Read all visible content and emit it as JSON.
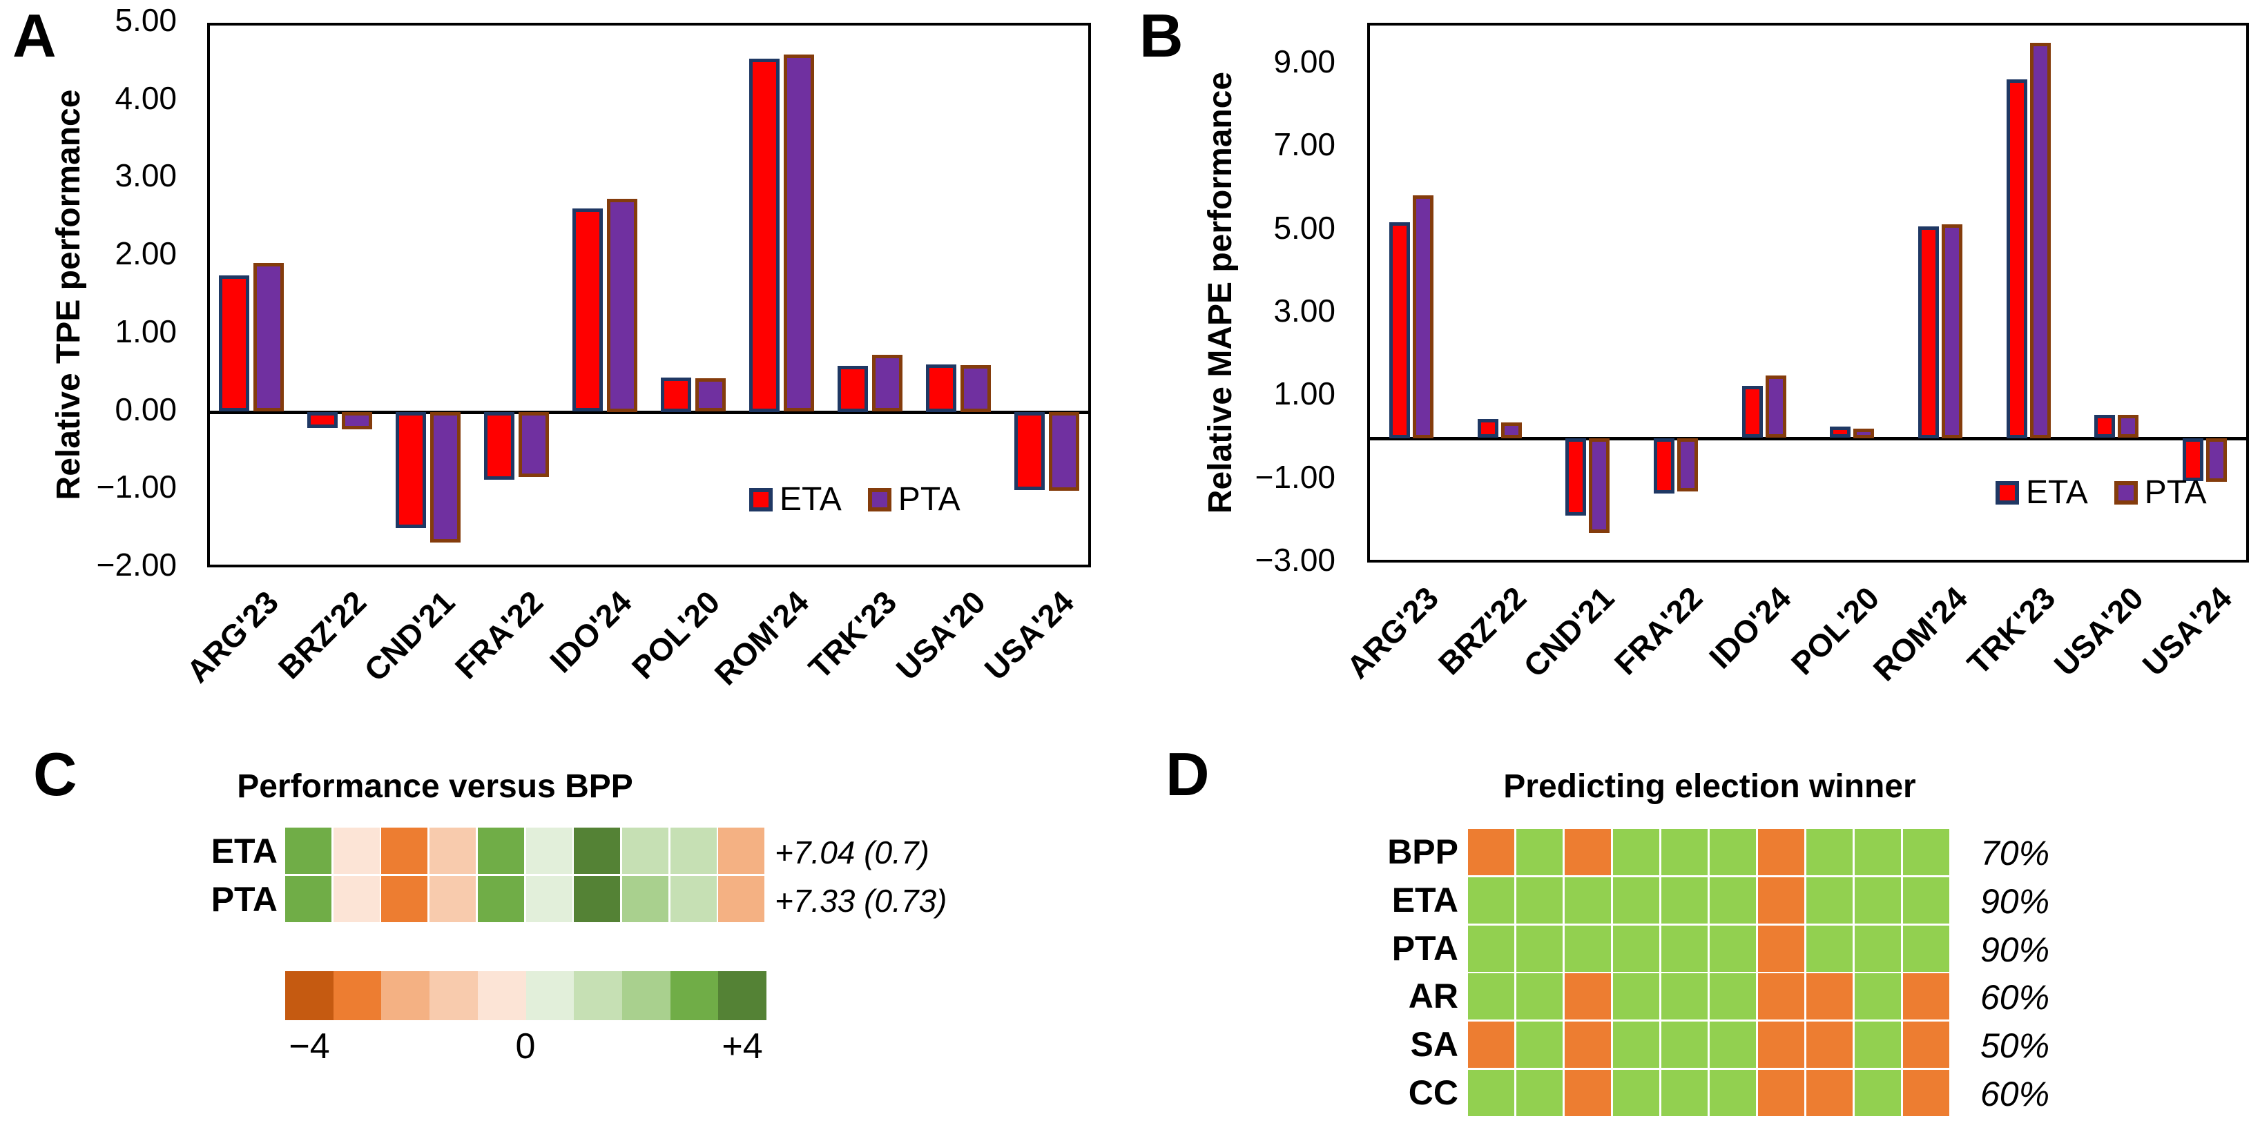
{
  "figure": {
    "background": "#FFFFFF",
    "panel_letters": [
      "A",
      "B",
      "C",
      "D"
    ]
  },
  "chart_data": [
    {
      "id": "A",
      "panel_letter": "A",
      "type": "bar",
      "ylabel": "Relative TPE performance",
      "categories": [
        "ARG'23",
        "BRZ'22",
        "CND'21",
        "FRA'22",
        "IDO'24",
        "POL'20",
        "ROM'24",
        "TRK'23",
        "USA'20",
        "USA'24"
      ],
      "series": [
        {
          "name": "ETA",
          "fill": "#FF0000",
          "border": "#1F3864",
          "values": [
            1.75,
            -0.2,
            -1.49,
            -0.87,
            2.61,
            0.44,
            4.54,
            0.59,
            0.61,
            -1.0
          ]
        },
        {
          "name": "PTA",
          "fill": "#7030A0",
          "border": "#843C0C",
          "values": [
            1.91,
            -0.22,
            -1.68,
            -0.83,
            2.74,
            0.43,
            4.59,
            0.73,
            0.6,
            -1.01
          ]
        }
      ],
      "ylim": [
        -2,
        5
      ],
      "yticks": [
        {
          "v": 5,
          "label": "5.00"
        },
        {
          "v": 4,
          "label": "4.00"
        },
        {
          "v": 3,
          "label": "3.00"
        },
        {
          "v": 2,
          "label": "2.00"
        },
        {
          "v": 1,
          "label": "1.00"
        },
        {
          "v": 0,
          "label": "0.00"
        },
        {
          "v": -1,
          "label": "−1.00"
        },
        {
          "v": -2,
          "label": "−2.00"
        }
      ],
      "grid": false,
      "legend_position": "inside-bottom-right"
    },
    {
      "id": "B",
      "panel_letter": "B",
      "type": "bar",
      "ylabel": "Relative MAPE performance",
      "categories": [
        "ARG'23",
        "BRZ'22",
        "CND'21",
        "FRA'22",
        "IDO'24",
        "POL'20",
        "ROM'24",
        "TRK'23",
        "USA'20",
        "USA'24"
      ],
      "series": [
        {
          "name": "ETA",
          "fill": "#FF0000",
          "border": "#1F3864",
          "values": [
            5.2,
            0.45,
            -1.87,
            -1.33,
            1.25,
            0.27,
            5.1,
            8.64,
            0.55,
            -1.03
          ]
        },
        {
          "name": "PTA",
          "fill": "#7030A0",
          "border": "#843C0C",
          "values": [
            5.85,
            0.38,
            -2.28,
            -1.28,
            1.5,
            0.23,
            5.15,
            9.52,
            0.55,
            -1.05
          ]
        }
      ],
      "ylim": [
        -3,
        10
      ],
      "yticks": [
        {
          "v": 9,
          "label": "9.00"
        },
        {
          "v": 7,
          "label": "7.00"
        },
        {
          "v": 5,
          "label": "5.00"
        },
        {
          "v": 3,
          "label": "3.00"
        },
        {
          "v": 1,
          "label": "1.00"
        },
        {
          "v": -1,
          "label": "−1.00"
        },
        {
          "v": -3,
          "label": "−3.00"
        }
      ],
      "grid": false,
      "legend_position": "inside-bottom-right"
    },
    {
      "id": "C",
      "panel_letter": "C",
      "type": "heatmap",
      "title": "Performance versus BPP",
      "rows": [
        {
          "label": "ETA",
          "annotation": "+7.04 (0.7)",
          "cell_colors": [
            "#70AD47",
            "#FCE4D6",
            "#ED7D31",
            "#F8CBAD",
            "#70AD47",
            "#E2EFDA",
            "#548235",
            "#C6E0B4",
            "#C6E0B4",
            "#F4B183"
          ]
        },
        {
          "label": "PTA",
          "annotation": "+7.33 (0.73)",
          "cell_colors": [
            "#70AD47",
            "#FCE4D6",
            "#ED7D31",
            "#F8CBAD",
            "#70AD47",
            "#E2EFDA",
            "#548235",
            "#A9D08E",
            "#C6E0B4",
            "#F4B183"
          ]
        }
      ],
      "colorbar": {
        "colors": [
          "#C55A11",
          "#ED7D31",
          "#F4B183",
          "#F8CBAD",
          "#FCE4D6",
          "#E2EFDA",
          "#C6E0B4",
          "#A9D08E",
          "#70AD47",
          "#548235"
        ],
        "tick_labels": [
          "−4",
          "0",
          "+4"
        ],
        "range": [
          -4,
          4
        ]
      }
    },
    {
      "id": "D",
      "panel_letter": "D",
      "type": "heatmap",
      "title": "Predicting election winner",
      "correct_color": "#92D050",
      "incorrect_color": "#ED7D31",
      "rows": [
        {
          "label": "BPP",
          "annotation": "70%",
          "cells": [
            0,
            1,
            0,
            1,
            1,
            1,
            0,
            1,
            1,
            1
          ]
        },
        {
          "label": "ETA",
          "annotation": "90%",
          "cells": [
            1,
            1,
            1,
            1,
            1,
            1,
            0,
            1,
            1,
            1
          ]
        },
        {
          "label": "PTA",
          "annotation": "90%",
          "cells": [
            1,
            1,
            1,
            1,
            1,
            1,
            0,
            1,
            1,
            1
          ]
        },
        {
          "label": "AR",
          "annotation": "60%",
          "cells": [
            1,
            1,
            0,
            1,
            1,
            1,
            0,
            0,
            1,
            0
          ]
        },
        {
          "label": "SA",
          "annotation": "50%",
          "cells": [
            0,
            1,
            0,
            1,
            1,
            1,
            0,
            0,
            1,
            0
          ]
        },
        {
          "label": "CC",
          "annotation": "60%",
          "cells": [
            1,
            1,
            0,
            1,
            1,
            1,
            0,
            0,
            1,
            0
          ]
        }
      ]
    }
  ]
}
